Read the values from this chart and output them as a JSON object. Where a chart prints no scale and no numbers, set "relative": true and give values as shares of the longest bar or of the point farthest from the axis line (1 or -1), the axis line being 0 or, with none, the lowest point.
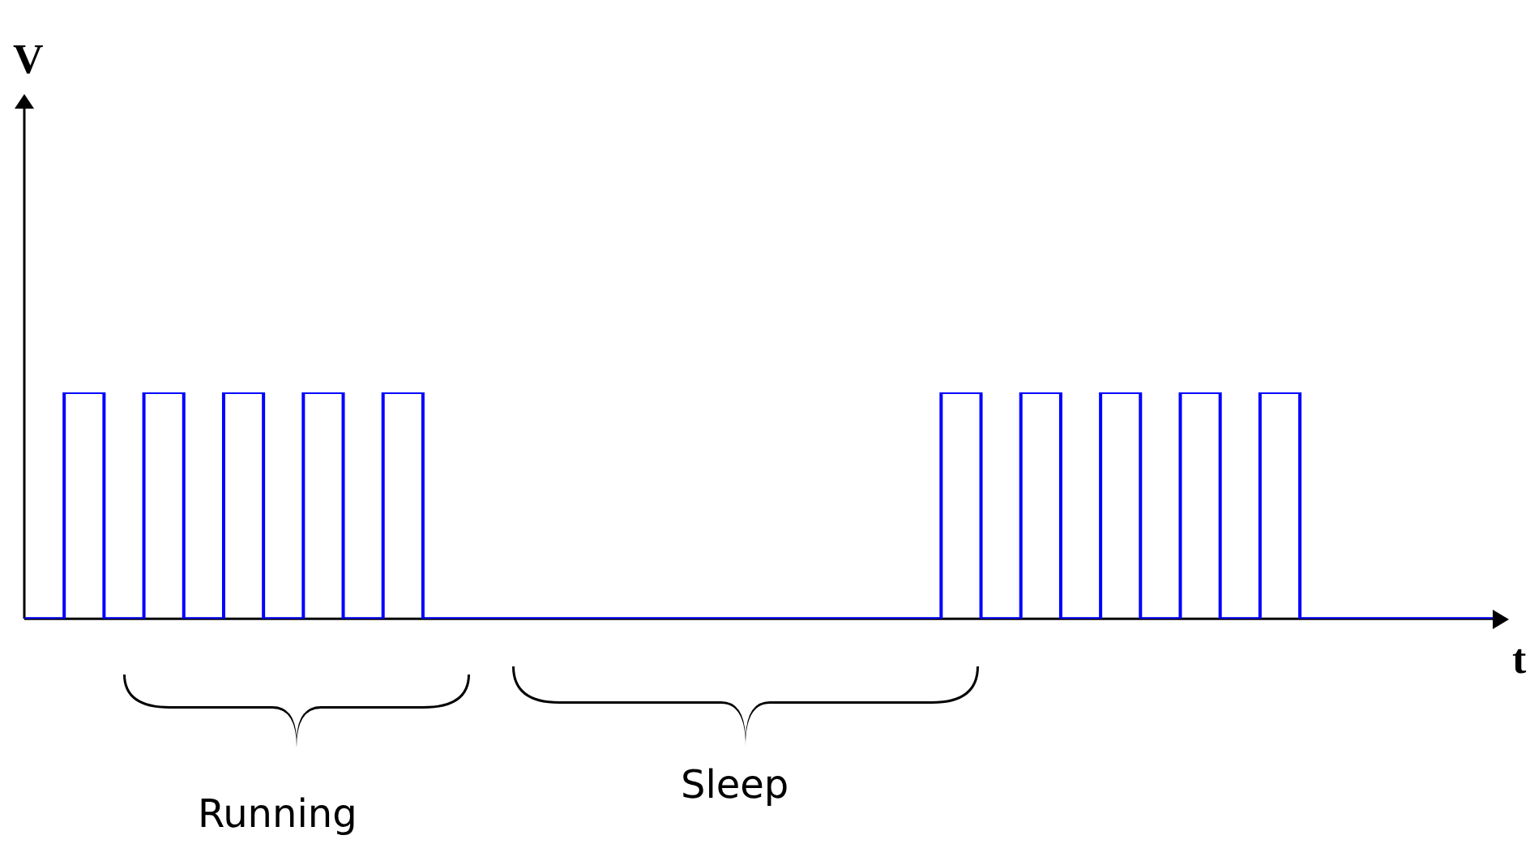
{
  "chart_data": {
    "type": "step",
    "relative": true,
    "xlabel": "t",
    "marker": "none",
    "line_style": "solid",
    "categories": [
      null,
      null,
      null,
      null,
      null,
      null,
      null,
      null,
      null,
      null,
      null,
      null,
      null,
      null,
      null,
      null,
      null,
      null,
      null,
      null,
      null,
      null,
      null,
      null,
      null,
      null,
      null,
      null,
      null,
      null,
      null,
      null,
      null,
      null,
      null,
      null,
      null,
      null
    ],
    "series": [
      {
        "color": "#0000ff",
        "values": [
          0,
          0,
          1,
          0,
          1,
          0,
          1,
          0,
          1,
          0,
          1,
          0,
          0,
          0,
          0,
          0,
          0,
          0,
          0,
          0,
          0,
          0,
          0,
          0,
          1,
          0,
          1,
          0,
          1,
          0,
          1,
          0,
          1,
          0,
          0,
          0,
          0,
          0
        ]
      }
    ],
    "annotations": [
      "V",
      "Running",
      "Sleep"
    ]
  }
}
